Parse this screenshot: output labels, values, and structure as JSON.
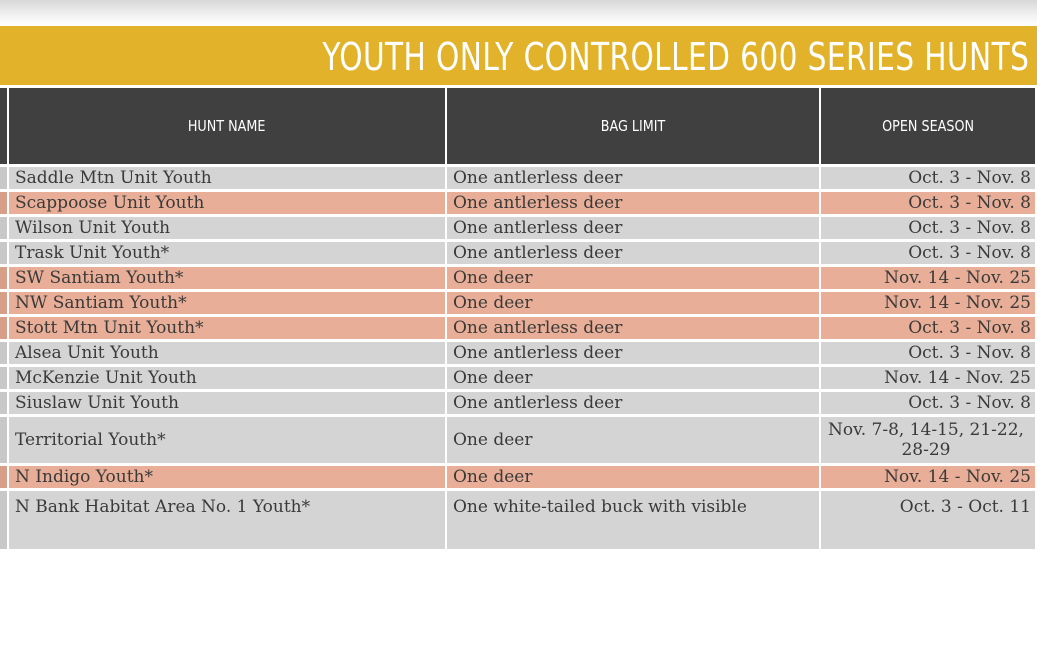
{
  "title": "YOUTH ONLY CONTROLLED 600 SERIES HUNTS",
  "colors": {
    "banner": "#e2b32a",
    "header": "#404040",
    "row_grey": "#d4d4d4",
    "row_pink": "#e8ae97"
  },
  "columns": {
    "hunt_name": "HUNT NAME",
    "bag_limit": "BAG LIMIT",
    "open_season": "OPEN SEASON"
  },
  "rows": [
    {
      "hunt": "Saddle Mtn Unit Youth",
      "bag": "One antlerless deer",
      "season": "Oct. 3 - Nov. 8",
      "shade": "grey"
    },
    {
      "hunt": "Scappoose Unit Youth",
      "bag": "One antlerless deer",
      "season": "Oct. 3 - Nov. 8",
      "shade": "pink"
    },
    {
      "hunt": "Wilson Unit Youth",
      "bag": "One antlerless deer",
      "season": "Oct. 3 - Nov. 8",
      "shade": "grey"
    },
    {
      "hunt": "Trask Unit Youth*",
      "bag": "One antlerless deer",
      "season": "Oct. 3 - Nov. 8",
      "shade": "grey"
    },
    {
      "hunt": "SW Santiam Youth*",
      "bag": "One deer",
      "season": "Nov. 14 - Nov. 25",
      "shade": "pink"
    },
    {
      "hunt": "NW Santiam Youth*",
      "bag": "One deer",
      "season": "Nov. 14 - Nov. 25",
      "shade": "pink"
    },
    {
      "hunt": "Stott Mtn Unit Youth*",
      "bag": "One antlerless deer",
      "season": "Oct. 3 - Nov. 8",
      "shade": "pink"
    },
    {
      "hunt": "Alsea Unit Youth",
      "bag": "One antlerless deer",
      "season": "Oct. 3 - Nov. 8",
      "shade": "grey"
    },
    {
      "hunt": "McKenzie Unit Youth",
      "bag": "One deer",
      "season": "Nov. 14 - Nov. 25",
      "shade": "grey"
    },
    {
      "hunt": "Siuslaw Unit Youth",
      "bag": "One antlerless deer",
      "season": "Oct. 3 - Nov. 8",
      "shade": "grey"
    },
    {
      "hunt": "Territorial Youth*",
      "bag": "One deer",
      "season": "Nov. 7-8, 14-15, 21-22, 28-29",
      "shade": "grey",
      "tall": true
    },
    {
      "hunt": "N Indigo Youth*",
      "bag": "One deer",
      "season": "Nov. 14 - Nov. 25",
      "shade": "pink"
    },
    {
      "hunt": "N Bank Habitat Area No. 1 Youth*",
      "bag": "One white-tailed buck with visible",
      "season": "Oct. 3 - Oct. 11",
      "shade": "grey",
      "last": true
    }
  ]
}
